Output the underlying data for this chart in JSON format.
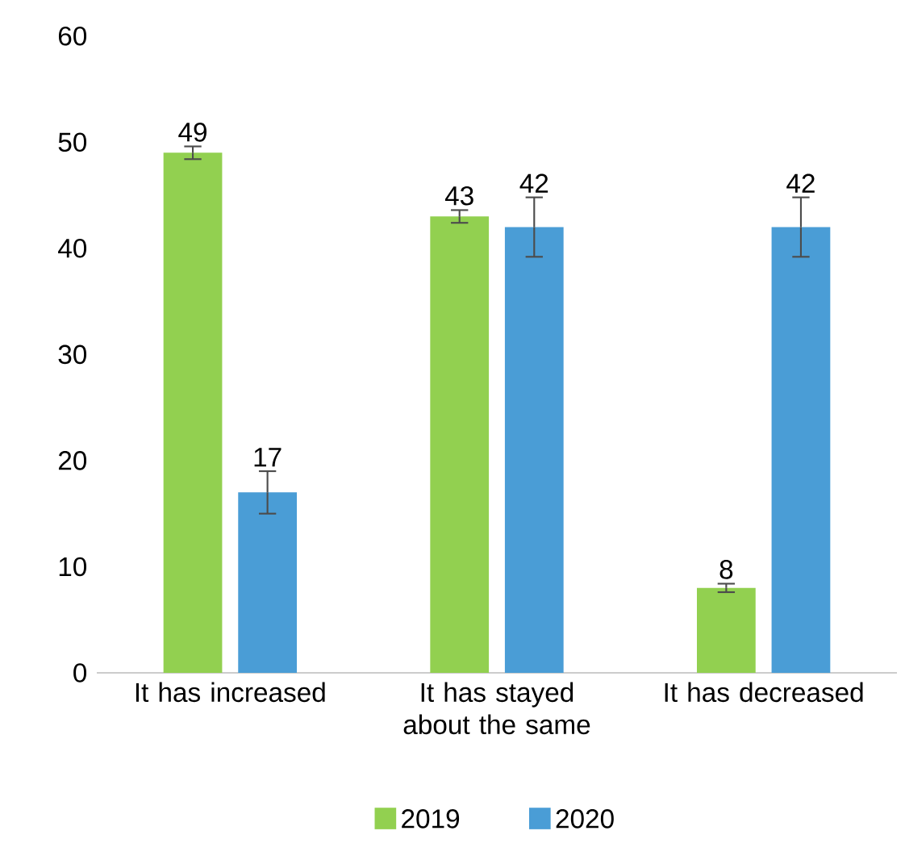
{
  "chart_data": {
    "type": "bar",
    "categories": [
      "It has increased",
      "It has stayed about the same",
      "It has decreased"
    ],
    "series": [
      {
        "name": "2019",
        "color": "#92d050",
        "values": [
          49,
          43,
          8
        ],
        "errors": [
          0.6,
          0.6,
          0.4
        ]
      },
      {
        "name": "2020",
        "color": "#4a9dd6",
        "values": [
          17,
          42,
          42
        ],
        "errors": [
          2,
          2.8,
          2.8
        ]
      }
    ],
    "ylim": [
      0,
      60
    ],
    "yticks": [
      0,
      10,
      20,
      30,
      40,
      50,
      60
    ],
    "data_labels": true,
    "grid": false,
    "legend": "bottom"
  }
}
